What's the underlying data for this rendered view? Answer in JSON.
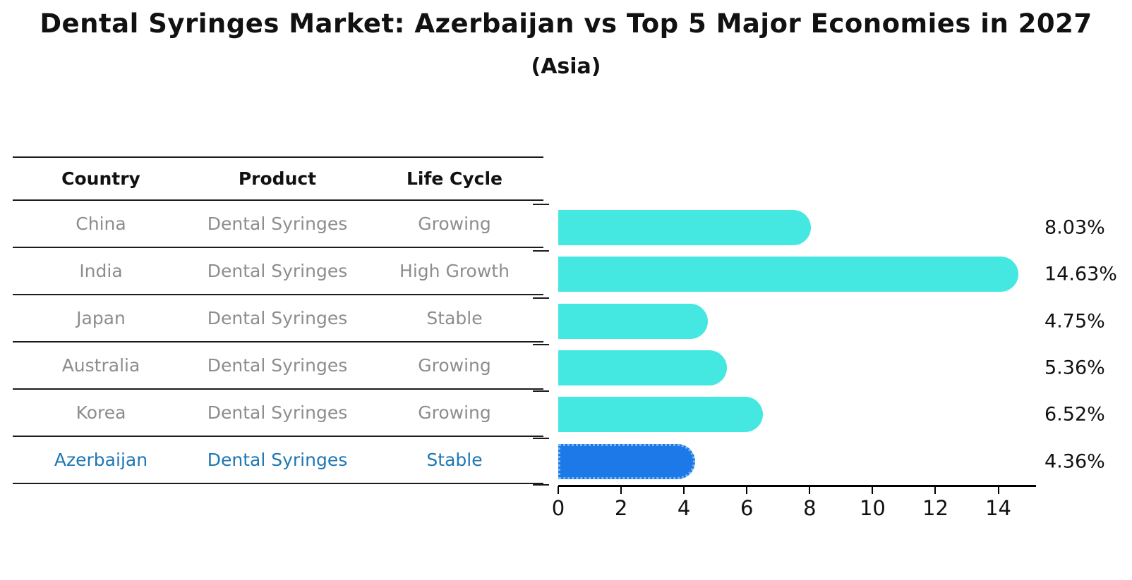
{
  "title": "Dental Syringes Market: Azerbaijan vs Top 5 Major Economies in 2027",
  "subtitle": "(Asia)",
  "table": {
    "headers": [
      "Country",
      "Product",
      "Life Cycle"
    ],
    "rows": [
      {
        "country": "China",
        "product": "Dental Syringes",
        "life_cycle": "Growing"
      },
      {
        "country": "India",
        "product": "Dental Syringes",
        "life_cycle": "High Growth"
      },
      {
        "country": "Japan",
        "product": "Dental Syringes",
        "life_cycle": "Stable"
      },
      {
        "country": "Australia",
        "product": "Dental Syringes",
        "life_cycle": "Growing"
      },
      {
        "country": "Korea",
        "product": "Dental Syringes",
        "life_cycle": "Growing"
      },
      {
        "country": "Azerbaijan",
        "product": "Dental Syringes",
        "life_cycle": "Stable"
      }
    ]
  },
  "chart_data": {
    "type": "bar",
    "orientation": "horizontal",
    "title": "Dental Syringes Market: Azerbaijan vs Top 5 Major Economies in 2027",
    "subtitle": "(Asia)",
    "categories": [
      "China",
      "India",
      "Japan",
      "Australia",
      "Korea",
      "Azerbaijan"
    ],
    "values": [
      8.03,
      14.63,
      4.75,
      5.36,
      6.52,
      4.36
    ],
    "labels": [
      "8.03%",
      "14.63%",
      "4.75%",
      "5.36%",
      "6.52%",
      "4.36%"
    ],
    "unit": "%",
    "xticks": [
      0,
      2,
      4,
      6,
      8,
      10,
      12,
      14
    ],
    "xlim": [
      0,
      15.2
    ],
    "grid": false,
    "legend": "none",
    "highlight_index": 5,
    "bar_color": "#45e8e0",
    "highlight_color": "#1d78e8",
    "highlight_border_color": "#7ab7f2"
  },
  "colors": {
    "title_text": "#111111",
    "table_line": "#1c1c1c",
    "row_text": "#8d8d8d",
    "highlight_text": "#1f77b4",
    "axis": "#000000"
  }
}
